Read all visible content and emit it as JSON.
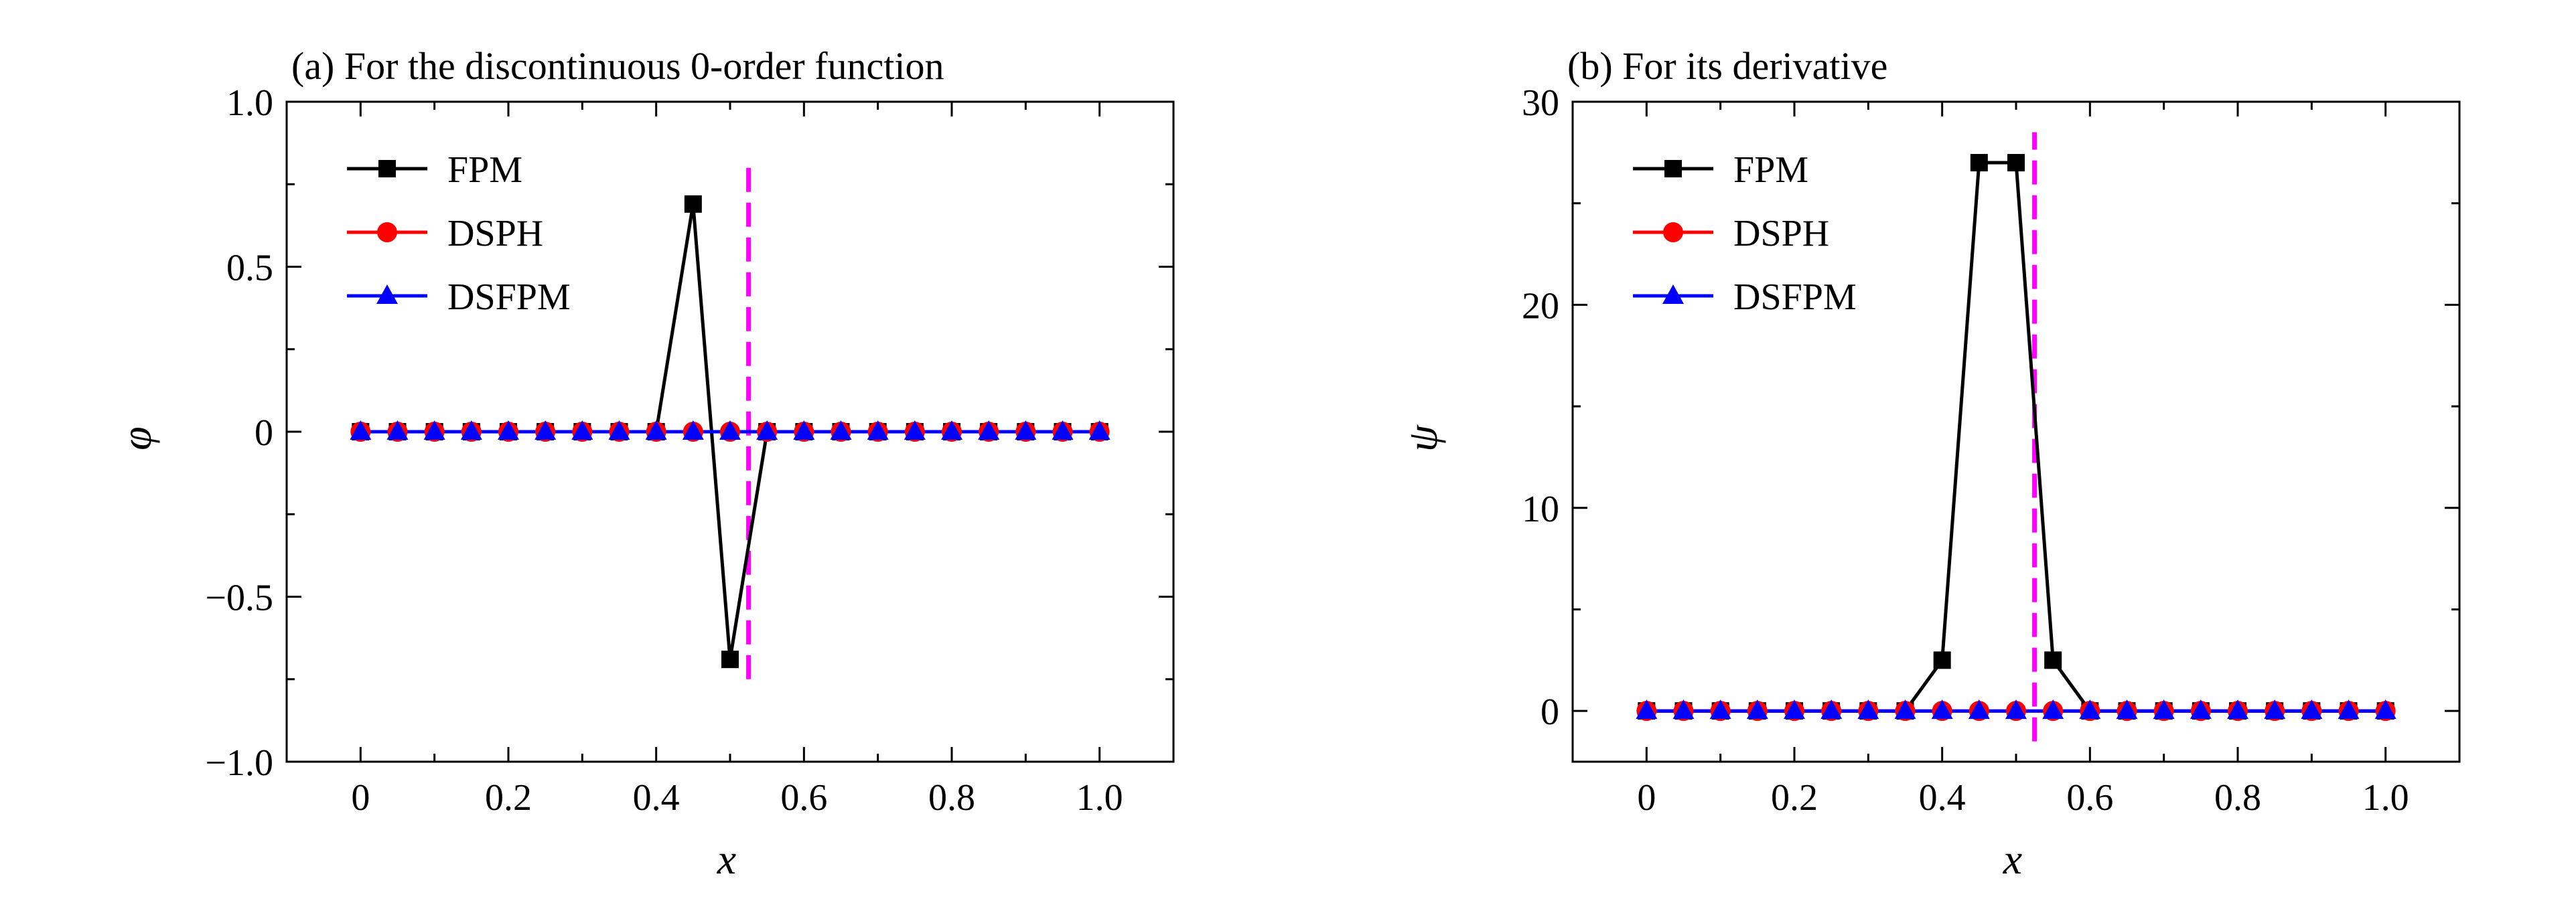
{
  "chart_data": [
    {
      "type": "line",
      "title": "(a) For the discontinuous 0-order function",
      "xlabel": "x",
      "ylabel": "φ",
      "xlim": [
        -0.1,
        1.1
      ],
      "ylim": [
        -1.0,
        1.0
      ],
      "xticks": [
        0,
        0.2,
        0.4,
        0.6,
        0.8,
        1.0
      ],
      "xtick_labels": [
        "0",
        "0.2",
        "0.4",
        "0.6",
        "0.8",
        "1.0"
      ],
      "yticks": [
        -1.0,
        -0.5,
        0,
        0.5,
        1.0
      ],
      "ytick_labels": [
        "−1.0",
        "−0.5",
        "0",
        "0.5",
        "1.0"
      ],
      "legend_position": "top-left",
      "x": [
        0,
        0.05,
        0.1,
        0.15,
        0.2,
        0.25,
        0.3,
        0.35,
        0.4,
        0.45,
        0.5,
        0.55,
        0.6,
        0.65,
        0.7,
        0.75,
        0.8,
        0.85,
        0.9,
        0.95,
        1.0
      ],
      "series": [
        {
          "name": "FPM",
          "color": "#000000",
          "marker": "square",
          "values": [
            0,
            0,
            0,
            0,
            0,
            0,
            0,
            0,
            0,
            0.69,
            -0.69,
            0,
            0,
            0,
            0,
            0,
            0,
            0,
            0,
            0,
            0
          ]
        },
        {
          "name": "DSPH",
          "color": "#ff0000",
          "marker": "circle",
          "values": [
            0,
            0,
            0,
            0,
            0,
            0,
            0,
            0,
            0,
            0,
            0,
            0,
            0,
            0,
            0,
            0,
            0,
            0,
            0,
            0,
            0
          ]
        },
        {
          "name": "DSFPM",
          "color": "#0000ff",
          "marker": "triangle",
          "values": [
            0,
            0,
            0,
            0,
            0,
            0,
            0,
            0,
            0,
            0,
            0,
            0,
            0,
            0,
            0,
            0,
            0,
            0,
            0,
            0,
            0
          ]
        }
      ],
      "discontinuity": {
        "x": 0.525,
        "y_range": [
          -0.75,
          0.8
        ],
        "color": "#ff00ff",
        "style": "dashed"
      }
    },
    {
      "type": "line",
      "title": "(b) For its derivative",
      "xlabel": "x",
      "ylabel": "ψ",
      "xlim": [
        -0.1,
        1.1
      ],
      "ylim": [
        -2.5,
        30
      ],
      "xticks": [
        0,
        0.2,
        0.4,
        0.6,
        0.8,
        1.0
      ],
      "xtick_labels": [
        "0",
        "0.2",
        "0.4",
        "0.6",
        "0.8",
        "1.0"
      ],
      "yticks": [
        0,
        10,
        20,
        30
      ],
      "ytick_labels": [
        "0",
        "10",
        "20",
        "30"
      ],
      "legend_position": "top-left",
      "x": [
        0,
        0.05,
        0.1,
        0.15,
        0.2,
        0.25,
        0.3,
        0.35,
        0.4,
        0.45,
        0.5,
        0.55,
        0.6,
        0.65,
        0.7,
        0.75,
        0.8,
        0.85,
        0.9,
        0.95,
        1.0
      ],
      "series": [
        {
          "name": "FPM",
          "color": "#000000",
          "marker": "square",
          "values": [
            0,
            0,
            0,
            0,
            0,
            0,
            0,
            0,
            2.5,
            27,
            27,
            2.5,
            0,
            0,
            0,
            0,
            0,
            0,
            0,
            0,
            0
          ]
        },
        {
          "name": "DSPH",
          "color": "#ff0000",
          "marker": "circle",
          "values": [
            0,
            0,
            0,
            0,
            0,
            0,
            0,
            0,
            0,
            0,
            0,
            0,
            0,
            0,
            0,
            0,
            0,
            0,
            0,
            0,
            0
          ]
        },
        {
          "name": "DSFPM",
          "color": "#0000ff",
          "marker": "triangle",
          "values": [
            0,
            0,
            0,
            0,
            0,
            0,
            0,
            0,
            0,
            0,
            0,
            0,
            0,
            0,
            0,
            0,
            0,
            0,
            0,
            0,
            0
          ]
        }
      ],
      "discontinuity": {
        "x": 0.525,
        "y_range": [
          -1.5,
          28.5
        ],
        "color": "#ff00ff",
        "style": "dashed"
      }
    }
  ]
}
